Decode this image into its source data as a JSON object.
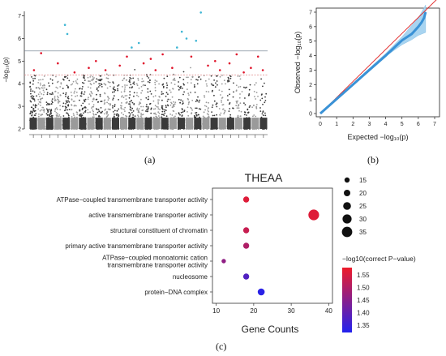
{
  "colors": {
    "manhattan_dark": "#3a3a3a",
    "manhattan_light": "#9a9a9a",
    "manhattan_sig": "#e0142a",
    "manhattan_top": "#3fb6d4",
    "qq_band": "#a8d4f0",
    "qq_line": "#3a92d6",
    "qq_ref": "#e02020",
    "threshold_line": "#6b7a8a",
    "suggestive_line": "#e08a8a"
  },
  "chart_data": [
    {
      "id": "a",
      "type": "scatter",
      "caption": "(a)",
      "ylabel": "−log₁₀(p)",
      "yticks": [
        2,
        3,
        4,
        5,
        6,
        7
      ],
      "ylim": [
        2,
        7.2
      ],
      "genome_wide_threshold": 5.45,
      "suggestive_threshold": 4.38,
      "n_chromosomes": 29,
      "significant_points": [
        [
          0.02,
          4.6
        ],
        [
          0.05,
          5.35
        ],
        [
          0.12,
          4.9
        ],
        [
          0.15,
          6.6
        ],
        [
          0.16,
          6.2
        ],
        [
          0.19,
          4.5
        ],
        [
          0.25,
          4.7
        ],
        [
          0.28,
          5.0
        ],
        [
          0.32,
          4.6
        ],
        [
          0.38,
          4.8
        ],
        [
          0.41,
          5.2
        ],
        [
          0.43,
          5.6
        ],
        [
          0.46,
          5.8
        ],
        [
          0.48,
          4.9
        ],
        [
          0.51,
          5.1
        ],
        [
          0.53,
          4.6
        ],
        [
          0.56,
          5.3
        ],
        [
          0.6,
          4.7
        ],
        [
          0.62,
          5.6
        ],
        [
          0.64,
          6.3
        ],
        [
          0.66,
          6.0
        ],
        [
          0.68,
          5.2
        ],
        [
          0.7,
          5.9
        ],
        [
          0.72,
          7.15
        ],
        [
          0.75,
          4.8
        ],
        [
          0.78,
          5.0
        ],
        [
          0.8,
          4.6
        ],
        [
          0.84,
          4.9
        ],
        [
          0.87,
          5.3
        ],
        [
          0.9,
          4.5
        ],
        [
          0.93,
          4.7
        ],
        [
          0.96,
          5.2
        ],
        [
          0.98,
          4.6
        ]
      ]
    },
    {
      "id": "b",
      "type": "line",
      "caption": "(b)",
      "xlabel": "Expected −log₁₀(p)",
      "ylabel": "Observed −log₁₀(p)",
      "xlim": [
        0,
        7
      ],
      "ylim": [
        0,
        7
      ],
      "xticks": [
        0,
        1,
        2,
        3,
        4,
        5,
        6,
        7
      ],
      "yticks": [
        0,
        1,
        2,
        3,
        4,
        5,
        6,
        7
      ],
      "reference_line": [
        [
          0,
          0
        ],
        [
          7,
          7
        ]
      ],
      "observed": [
        [
          0,
          0
        ],
        [
          1,
          1
        ],
        [
          2,
          2
        ],
        [
          3,
          3
        ],
        [
          4,
          4
        ],
        [
          5,
          5.05
        ],
        [
          5.6,
          5.5
        ],
        [
          6,
          6.0
        ],
        [
          6.2,
          6.3
        ],
        [
          6.35,
          6.6
        ],
        [
          6.45,
          7.0
        ]
      ],
      "confidence_band_upper": [
        [
          0,
          0.05
        ],
        [
          4,
          4.15
        ],
        [
          5,
          5.3
        ],
        [
          5.6,
          6.1
        ],
        [
          6,
          6.6
        ],
        [
          6.45,
          7.5
        ]
      ],
      "confidence_band_lower": [
        [
          0,
          0
        ],
        [
          4,
          3.95
        ],
        [
          5,
          4.75
        ],
        [
          5.6,
          5.1
        ],
        [
          6,
          5.4
        ],
        [
          6.45,
          5.6
        ]
      ]
    },
    {
      "id": "c",
      "type": "scatter",
      "caption": "(c)",
      "title": "THEAA",
      "xlabel": "Gene Counts",
      "xlim": [
        9,
        41
      ],
      "xticks": [
        10,
        20,
        30,
        40
      ],
      "categories": [
        "ATPase−coupled transmembrane transporter activity",
        "active transmembrane transporter activity",
        "structural constituent of chromatin",
        "primary active transmembrane transporter activity",
        "ATPase−coupled monoatomic cation\ntransmembrane transporter activity",
        "nucleosome",
        "protein−DNA complex"
      ],
      "gene_counts": [
        18,
        36,
        18,
        18,
        12,
        18,
        22
      ],
      "neg_log10_correct_p": [
        1.56,
        1.56,
        1.53,
        1.5,
        1.46,
        1.38,
        1.33
      ],
      "size_legend": {
        "values": [
          15,
          20,
          25,
          30,
          35
        ]
      },
      "color_legend": {
        "title": "−log10(correct P−value)",
        "ticks": [
          1.55,
          1.5,
          1.45,
          1.4,
          1.35
        ],
        "range": [
          1.32,
          1.58
        ],
        "low_color": "#2222ee",
        "high_color": "#ee1c2a"
      }
    }
  ]
}
